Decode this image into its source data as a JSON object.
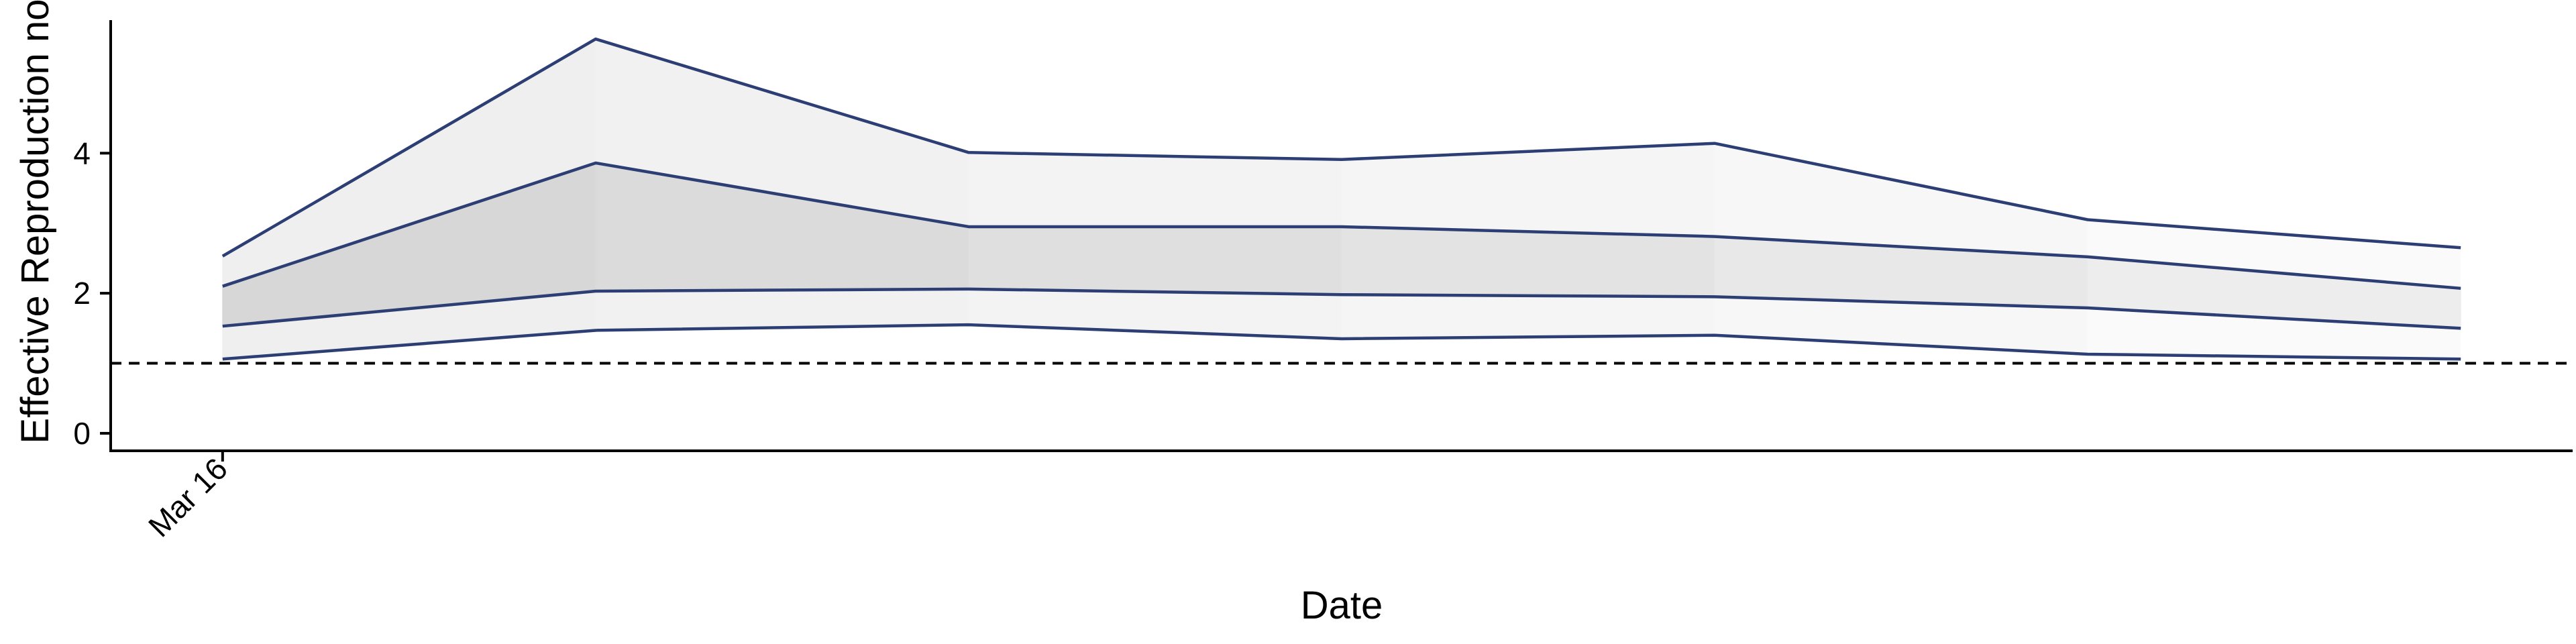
{
  "chart_data": {
    "type": "area",
    "title": "",
    "xlabel": "Date",
    "ylabel": "Effective Reproduction no",
    "x": [
      0,
      1,
      2,
      3,
      4,
      5,
      6
    ],
    "x_tick_labels": [
      {
        "x": 0,
        "label": "Mar 16"
      }
    ],
    "y_ticks": [
      0,
      2,
      4
    ],
    "ylim": [
      -0.25,
      5.9
    ],
    "xlim": [
      -0.3,
      6.3
    ],
    "reference_line": {
      "y": 1.0,
      "style": "dashed"
    },
    "bands": [
      {
        "name": "outer",
        "lower": [
          1.06,
          1.47,
          1.55,
          1.35,
          1.4,
          1.13,
          1.06
        ],
        "upper": [
          2.53,
          5.63,
          4.01,
          3.91,
          4.14,
          3.05,
          2.65
        ]
      },
      {
        "name": "inner",
        "lower": [
          1.53,
          2.03,
          2.06,
          1.98,
          1.95,
          1.79,
          1.5
        ],
        "upper": [
          2.1,
          3.86,
          2.95,
          2.95,
          2.81,
          2.52,
          2.07
        ]
      }
    ],
    "grid": false,
    "legend": "none",
    "colors": {
      "line": "#2c3e73",
      "outer_band": [
        "#efefef",
        "#f1f1f1",
        "#f3f3f3",
        "#f5f5f5",
        "#f7f7f7",
        "#fafafa"
      ],
      "inner_band": [
        "#d7d7d7",
        "#dbdbdb",
        "#dfdfdf",
        "#e3e3e3",
        "#e8e8e8",
        "#ededed"
      ]
    }
  }
}
